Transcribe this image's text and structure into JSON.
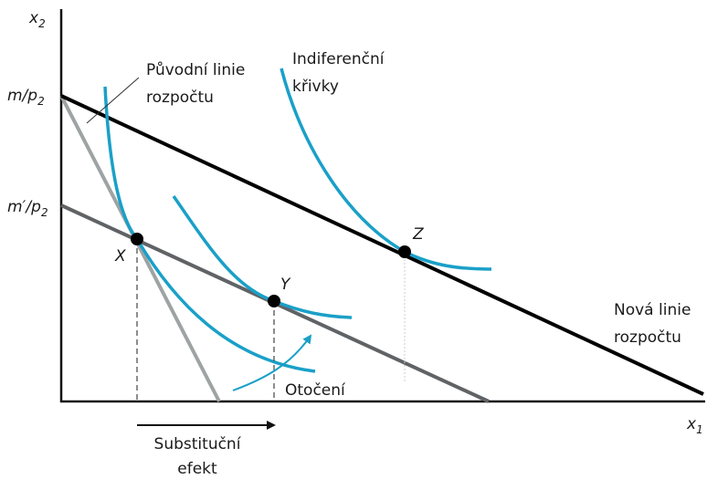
{
  "axes": {
    "y": {
      "base": "x",
      "sub": "2"
    },
    "x": {
      "base": "x",
      "sub": "1"
    }
  },
  "intercepts": {
    "original": {
      "base": "m/p",
      "sub": "2"
    },
    "new": {
      "base": "m′/p",
      "sub": "2"
    }
  },
  "labels": {
    "original_line": [
      "Původní linie",
      "rozpočtu"
    ],
    "curves": [
      "Indiferenční",
      "křivky"
    ],
    "new_line": [
      "Nová linie",
      "rozpočtu"
    ],
    "rotation": "Otočení",
    "substitution": [
      "Substituční",
      "efekt"
    ]
  },
  "points": [
    "X",
    "Y",
    "Z"
  ]
}
